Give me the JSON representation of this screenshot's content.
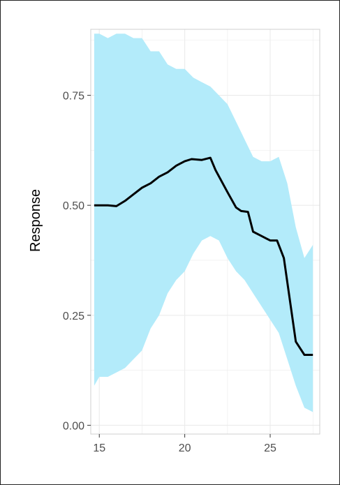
{
  "chart_data": {
    "type": "area",
    "title": "",
    "xlabel": "",
    "ylabel": "Response",
    "xlim": [
      14.5,
      27.9
    ],
    "ylim": [
      -0.02,
      0.9
    ],
    "x_ticks": [
      15,
      20,
      25
    ],
    "x_tick_labels": [
      "15",
      "20",
      "25"
    ],
    "y_ticks": [
      0,
      0.25,
      0.5,
      0.75
    ],
    "y_tick_labels": [
      "0.00",
      "0.25",
      "0.50",
      "0.75"
    ],
    "grid": true,
    "legend": "none",
    "colors": {
      "ribbon": "#b3ebfa",
      "line": "#000000",
      "grid": "#ebebeb",
      "panel_border": "#cfcfcf"
    },
    "series": [
      {
        "kind": "line",
        "x": [
          14.7,
          15.5,
          16.0,
          16.5,
          17.0,
          17.5,
          18.0,
          18.5,
          19.0,
          19.5,
          20.0,
          20.4,
          21.0,
          21.5,
          21.8,
          22.5,
          23.0,
          23.3,
          23.7,
          24.0,
          24.5,
          25.0,
          25.4,
          25.8,
          26.5,
          27.0,
          27.5
        ],
        "values": [
          0.5,
          0.5,
          0.498,
          0.51,
          0.525,
          0.54,
          0.55,
          0.565,
          0.575,
          0.59,
          0.6,
          0.605,
          0.603,
          0.608,
          0.58,
          0.53,
          0.495,
          0.487,
          0.485,
          0.44,
          0.43,
          0.42,
          0.42,
          0.38,
          0.19,
          0.16,
          0.16
        ]
      },
      {
        "kind": "ribbon",
        "x": [
          14.7,
          15.0,
          15.5,
          16.0,
          16.5,
          17.0,
          17.5,
          18.0,
          18.5,
          19.0,
          19.5,
          20.0,
          20.5,
          21.0,
          21.5,
          22.0,
          22.5,
          23.0,
          23.5,
          24.0,
          24.5,
          25.0,
          25.5,
          26.0,
          26.5,
          27.0,
          27.5
        ],
        "lower": [
          0.09,
          0.11,
          0.11,
          0.12,
          0.13,
          0.15,
          0.17,
          0.22,
          0.25,
          0.3,
          0.33,
          0.35,
          0.39,
          0.42,
          0.43,
          0.42,
          0.38,
          0.35,
          0.33,
          0.3,
          0.27,
          0.24,
          0.21,
          0.15,
          0.09,
          0.04,
          0.03
        ],
        "upper": [
          0.89,
          0.89,
          0.88,
          0.89,
          0.89,
          0.88,
          0.88,
          0.85,
          0.85,
          0.82,
          0.81,
          0.81,
          0.79,
          0.78,
          0.77,
          0.75,
          0.73,
          0.69,
          0.65,
          0.61,
          0.6,
          0.6,
          0.61,
          0.55,
          0.45,
          0.38,
          0.41
        ]
      }
    ]
  }
}
